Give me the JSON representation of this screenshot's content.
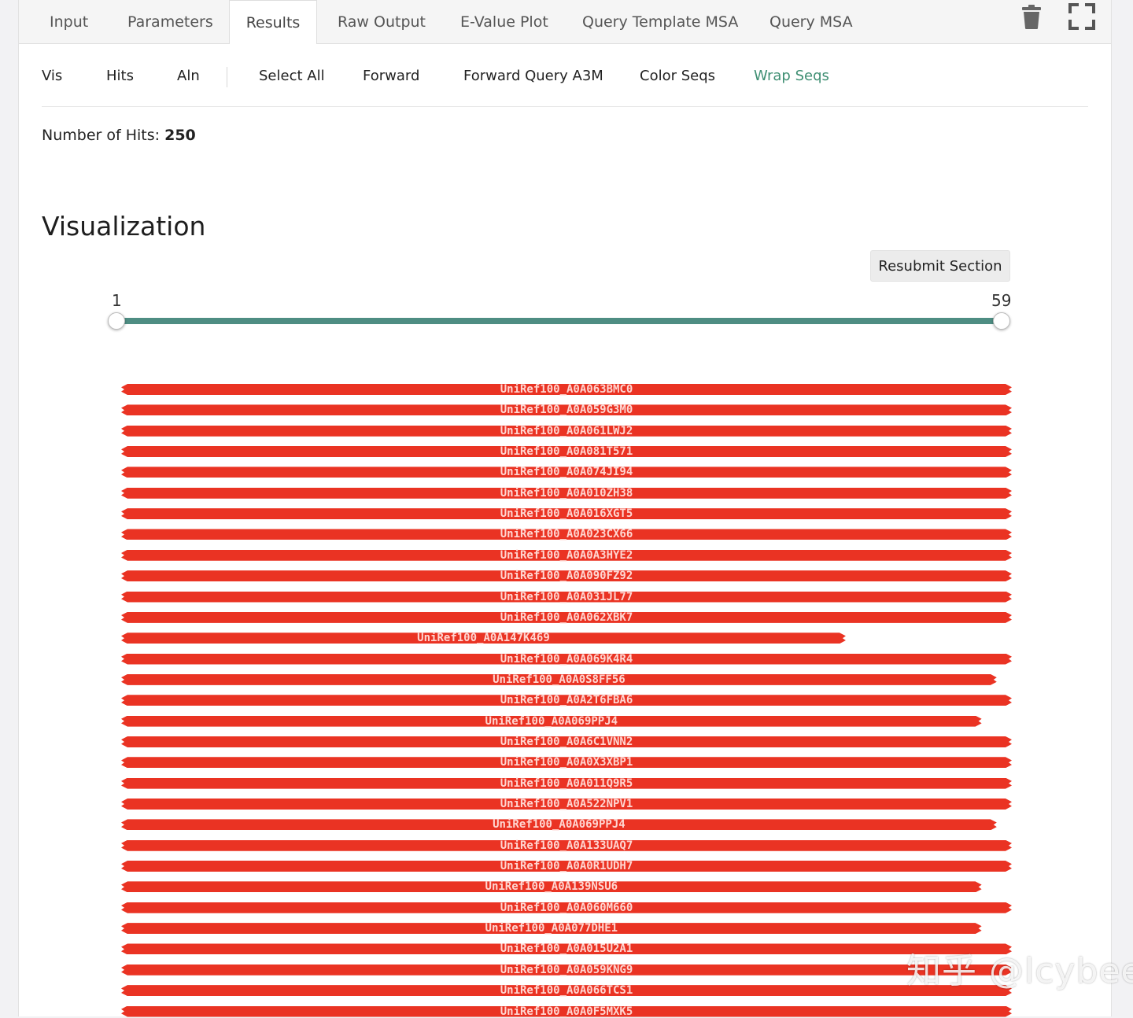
{
  "tabs": [
    {
      "label": "Input"
    },
    {
      "label": "Parameters"
    },
    {
      "label": "Results",
      "active": true
    },
    {
      "label": "Raw Output"
    },
    {
      "label": "E-Value Plot"
    },
    {
      "label": "Query Template MSA"
    },
    {
      "label": "Query MSA"
    }
  ],
  "toolbar": {
    "delete_icon": "trash-icon",
    "fullscreen_icon": "fullscreen-icon"
  },
  "subnav": [
    {
      "label": "Vis"
    },
    {
      "label": "Hits"
    },
    {
      "label": "Aln"
    },
    {
      "label": "Select All"
    },
    {
      "label": "Forward"
    },
    {
      "label": "Forward Query A3M"
    },
    {
      "label": "Color Seqs"
    },
    {
      "label": "Wrap Seqs",
      "accent": true
    }
  ],
  "hits_summary": {
    "label": "Number of Hits:",
    "count": "250"
  },
  "visualization": {
    "heading": "Visualization",
    "resubmit_label": "Resubmit Section",
    "range": {
      "min_label": "1",
      "max_label": "59",
      "start": 1,
      "end": 59,
      "total": 59
    },
    "bar_color": "#ea3323",
    "hits": [
      {
        "name": "UniRef100_A0A063BMC0",
        "start": 1,
        "end": 59
      },
      {
        "name": "UniRef100_A0A059G3M0",
        "start": 1,
        "end": 59
      },
      {
        "name": "UniRef100_A0A061LWJ2",
        "start": 1,
        "end": 59
      },
      {
        "name": "UniRef100_A0A081T571",
        "start": 1,
        "end": 59
      },
      {
        "name": "UniRef100_A0A074JI94",
        "start": 1,
        "end": 59
      },
      {
        "name": "UniRef100_A0A010ZH38",
        "start": 1,
        "end": 59
      },
      {
        "name": "UniRef100_A0A016XGT5",
        "start": 1,
        "end": 59
      },
      {
        "name": "UniRef100_A0A023CX66",
        "start": 1,
        "end": 59
      },
      {
        "name": "UniRef100_A0A0A3HYE2",
        "start": 1,
        "end": 59
      },
      {
        "name": "UniRef100_A0A090FZ92",
        "start": 1,
        "end": 59
      },
      {
        "name": "UniRef100_A0A031JL77",
        "start": 1,
        "end": 59
      },
      {
        "name": "UniRef100_A0A062XBK7",
        "start": 1,
        "end": 59
      },
      {
        "name": "UniRef100_A0A147K469",
        "start": 1,
        "end": 48
      },
      {
        "name": "UniRef100_A0A069K4R4",
        "start": 1,
        "end": 59
      },
      {
        "name": "UniRef100_A0A0S8FF56",
        "start": 1,
        "end": 58
      },
      {
        "name": "UniRef100_A0A2T6FBA6",
        "start": 1,
        "end": 59
      },
      {
        "name": "UniRef100_A0A069PPJ4",
        "start": 1,
        "end": 57
      },
      {
        "name": "UniRef100_A0A6C1VNN2",
        "start": 1,
        "end": 59
      },
      {
        "name": "UniRef100_A0A0X3XBP1",
        "start": 1,
        "end": 59
      },
      {
        "name": "UniRef100_A0A011Q9R5",
        "start": 1,
        "end": 59
      },
      {
        "name": "UniRef100_A0A522NPV1",
        "start": 1,
        "end": 59
      },
      {
        "name": "UniRef100_A0A069PPJ4",
        "start": 1,
        "end": 58
      },
      {
        "name": "UniRef100_A0A133UAQ7",
        "start": 1,
        "end": 59
      },
      {
        "name": "UniRef100_A0A0R1UDH7",
        "start": 1,
        "end": 59
      },
      {
        "name": "UniRef100_A0A139NSU6",
        "start": 1,
        "end": 57
      },
      {
        "name": "UniRef100_A0A060M660",
        "start": 1,
        "end": 59
      },
      {
        "name": "UniRef100_A0A077DHE1",
        "start": 1,
        "end": 57
      },
      {
        "name": "UniRef100_A0A015U2A1",
        "start": 1,
        "end": 59
      },
      {
        "name": "UniRef100_A0A059KNG9",
        "start": 1,
        "end": 59
      },
      {
        "name": "UniRef100_A0A066TCS1",
        "start": 1,
        "end": 59
      },
      {
        "name": "UniRef100_A0A0F5MXK5",
        "start": 1,
        "end": 59
      }
    ]
  },
  "watermark": "知乎 @lcybee"
}
